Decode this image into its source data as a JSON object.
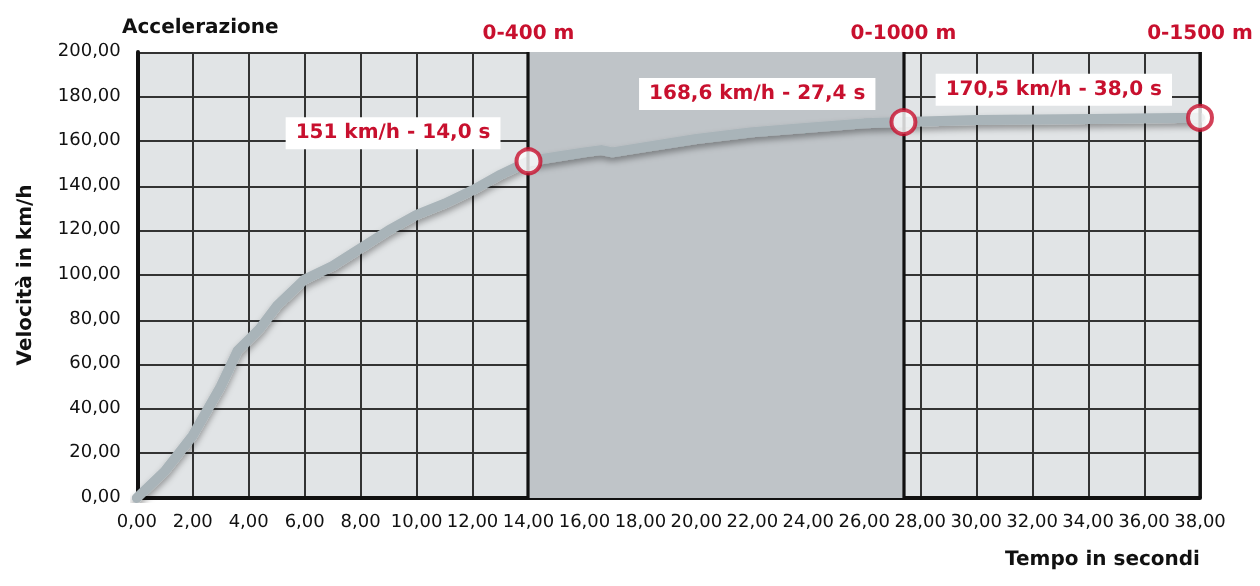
{
  "chart_data": {
    "type": "line",
    "title": "Accelerazione",
    "xlabel": "Tempo in secondi",
    "ylabel": "Velocità in km/h",
    "xlim": [
      0,
      38
    ],
    "xticks": [
      {
        "value": 0,
        "label": "0,00"
      },
      {
        "value": 2,
        "label": "2,00"
      },
      {
        "value": 4,
        "label": "4,00"
      },
      {
        "value": 6,
        "label": "6,00"
      },
      {
        "value": 8,
        "label": "8,00"
      },
      {
        "value": 10,
        "label": "10,00"
      },
      {
        "value": 12,
        "label": "12,00"
      },
      {
        "value": 14,
        "label": "14,00"
      },
      {
        "value": 16,
        "label": "16,00"
      },
      {
        "value": 18,
        "label": "18,00"
      },
      {
        "value": 20,
        "label": "20,00"
      },
      {
        "value": 22,
        "label": "22,00"
      },
      {
        "value": 24,
        "label": "24,00"
      },
      {
        "value": 26,
        "label": "26,00"
      },
      {
        "value": 28,
        "label": "28,00"
      },
      {
        "value": 30,
        "label": "30,00"
      },
      {
        "value": 32,
        "label": "32,00"
      },
      {
        "value": 34,
        "label": "34,00"
      },
      {
        "value": 36,
        "label": "36,00"
      },
      {
        "value": 38,
        "label": "38,00"
      }
    ],
    "ylim": [
      0,
      200
    ],
    "yticks": [
      {
        "value": 0,
        "label": "0,00"
      },
      {
        "value": 20,
        "label": "20,00"
      },
      {
        "value": 40,
        "label": "40,00"
      },
      {
        "value": 60,
        "label": "60,00"
      },
      {
        "value": 80,
        "label": "80,00"
      },
      {
        "value": 100,
        "label": "100,00"
      },
      {
        "value": 120,
        "label": "120,00"
      },
      {
        "value": 140,
        "label": "140,00"
      },
      {
        "value": 160,
        "label": "160,00"
      },
      {
        "value": 180,
        "label": "180,00"
      },
      {
        "value": 200,
        "label": "200,00"
      }
    ],
    "grid": true,
    "series": [
      {
        "type": "line",
        "color": "#a9b4b9",
        "marker": "none",
        "x": [
          0,
          1,
          2,
          3,
          3.6,
          4,
          4.4,
          5,
          6,
          6.5,
          7,
          8,
          9,
          10,
          11,
          12,
          13,
          14,
          15,
          16,
          16.6,
          17,
          18,
          20,
          22,
          24,
          26,
          27.4,
          30,
          34,
          38
        ],
        "values": [
          0,
          12,
          28,
          50,
          66,
          71,
          76,
          86,
          98,
          101,
          104,
          112,
          120,
          127,
          132,
          138,
          145,
          151,
          153,
          155,
          156,
          155,
          157,
          161,
          164,
          166,
          168,
          168.6,
          169.5,
          170,
          170.5
        ]
      },
      {
        "type": "scatter",
        "color": "#c8102e",
        "marker": "circle",
        "x": [
          14,
          27.4,
          38
        ],
        "values": [
          151,
          168.6,
          170.5
        ]
      }
    ],
    "bands": [
      {
        "axis": "x",
        "from": 14,
        "to": 27.4,
        "color": "#bfc4c8"
      }
    ],
    "ref_lines": [
      {
        "axis": "x",
        "value": 14,
        "label": "0-400 m",
        "color": "#111111"
      },
      {
        "axis": "x",
        "value": 27.4,
        "label": "0-1000 m",
        "color": "#111111"
      },
      {
        "axis": "x",
        "value": 38,
        "label": "0-1500 m",
        "color": "#111111"
      }
    ],
    "annotations": [
      {
        "text": "151 km/h - 14,0 s",
        "x": 14,
        "y": 151
      },
      {
        "text": "168,6 km/h - 27,4 s",
        "x": 27.4,
        "y": 168.6
      },
      {
        "text": "170,5 km/h - 38,0 s",
        "x": 38,
        "y": 170.5
      }
    ]
  }
}
